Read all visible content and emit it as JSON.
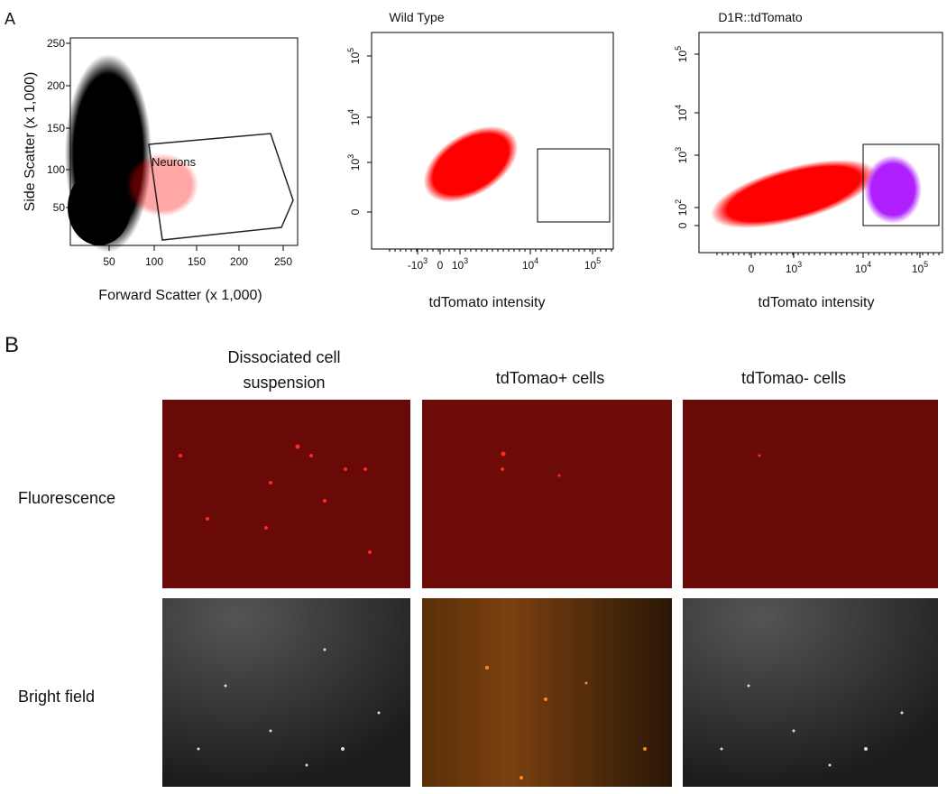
{
  "panel_a": {
    "label": "A",
    "plots": [
      {
        "y_label": "Side Scatter (x 1,000)",
        "x_label": "Forward Scatter (x 1,000)",
        "gate_label": "Neurons",
        "y_ticks": [
          {
            "base": "250"
          },
          {
            "base": "200"
          },
          {
            "base": "150"
          },
          {
            "base": "100"
          },
          {
            "base": "50"
          }
        ],
        "x_ticks": [
          {
            "base": "50"
          },
          {
            "base": "100"
          },
          {
            "base": "150"
          },
          {
            "base": "200"
          },
          {
            "base": "250"
          }
        ]
      },
      {
        "title": "Wild Type",
        "x_label": "tdTomato intensity",
        "y_ticks": [
          {
            "base": "10",
            "exp": "5"
          },
          {
            "base": "10",
            "exp": "4"
          },
          {
            "base": "10",
            "exp": "3"
          },
          {
            "base": "0"
          }
        ],
        "x_ticks": [
          {
            "base": "-10",
            "exp": "3"
          },
          {
            "base": "0"
          },
          {
            "base": "10",
            "exp": "3"
          },
          {
            "base": "10",
            "exp": "4"
          },
          {
            "base": "10",
            "exp": "5"
          }
        ]
      },
      {
        "title": "D1R::tdTomato",
        "x_label": "tdTomato intensity",
        "y_ticks": [
          {
            "base": "10",
            "exp": "5"
          },
          {
            "base": "10",
            "exp": "4"
          },
          {
            "base": "10",
            "exp": "3"
          },
          {
            "base": "10",
            "exp": "2"
          },
          {
            "base": "0"
          }
        ],
        "x_ticks": [
          {
            "base": "0"
          },
          {
            "base": "10",
            "exp": "3"
          },
          {
            "base": "10",
            "exp": "4"
          },
          {
            "base": "10",
            "exp": "5"
          }
        ]
      }
    ]
  },
  "panel_b": {
    "label": "B",
    "columns": [
      [
        "Dissociated cell",
        "suspension"
      ],
      [
        "tdTomao+ cells"
      ],
      [
        "tdTomao- cells"
      ]
    ],
    "rows": [
      "Fluorescence",
      "Bright field"
    ]
  }
}
